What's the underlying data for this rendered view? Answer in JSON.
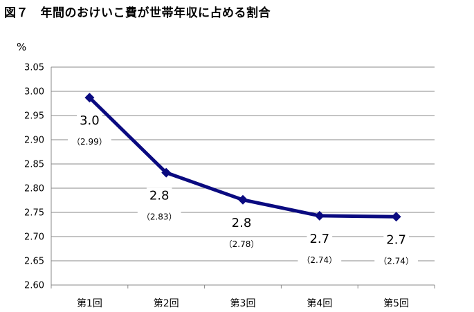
{
  "title": "図７　年間のおけいこ費が世帯年収に占める割合",
  "chart_data": {
    "type": "line",
    "title": "図７　年間のおけいこ費が世帯年収に占める割合",
    "ylabel": "%",
    "xlabel": "",
    "categories": [
      "第1回",
      "第2回",
      "第3回",
      "第4回",
      "第5回"
    ],
    "series": [
      {
        "values": [
          2.987,
          2.832,
          2.776,
          2.743,
          2.741
        ],
        "labels": [
          "3.0",
          "2.8",
          "2.8",
          "2.7",
          "2.7"
        ],
        "sublabels": [
          "（2.99）",
          "（2.83）",
          "（2.78）",
          "（2.74）",
          "（2.74）"
        ],
        "color": "#0a0a80"
      }
    ],
    "ylim": [
      2.6,
      3.05
    ],
    "yticks": [
      "2.60",
      "2.65",
      "2.70",
      "2.75",
      "2.80",
      "2.85",
      "2.90",
      "2.95",
      "3.00",
      "3.05"
    ],
    "grid": true,
    "legend": "none"
  }
}
